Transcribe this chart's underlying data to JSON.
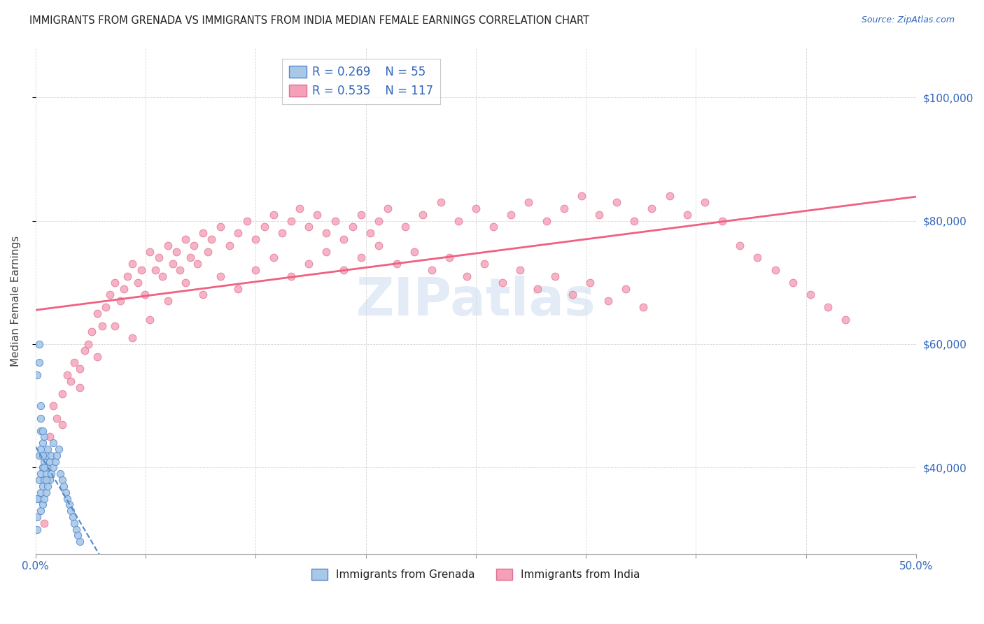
{
  "title": "IMMIGRANTS FROM GRENADA VS IMMIGRANTS FROM INDIA MEDIAN FEMALE EARNINGS CORRELATION CHART",
  "source": "Source: ZipAtlas.com",
  "ylabel": "Median Female Earnings",
  "ylabel_right_ticks": [
    40000,
    60000,
    80000,
    100000
  ],
  "ylabel_right_labels": [
    "$40,000",
    "$60,000",
    "$80,000",
    "$100,000"
  ],
  "grenada_R": 0.269,
  "grenada_N": 55,
  "india_R": 0.535,
  "india_N": 117,
  "grenada_color": "#a8c8e8",
  "india_color": "#f5a0b8",
  "grenada_line_color": "#5588cc",
  "india_line_color": "#f06080",
  "grenada_trend_style": "--",
  "india_trend_style": "-",
  "watermark": "ZIPatlas",
  "background_color": "#ffffff",
  "xlim": [
    0.0,
    0.5
  ],
  "ylim": [
    26000,
    108000
  ],
  "grenada_scatter_x": [
    0.001,
    0.002,
    0.002,
    0.002,
    0.003,
    0.003,
    0.003,
    0.003,
    0.003,
    0.004,
    0.004,
    0.004,
    0.004,
    0.005,
    0.005,
    0.005,
    0.005,
    0.006,
    0.006,
    0.006,
    0.007,
    0.007,
    0.007,
    0.008,
    0.008,
    0.009,
    0.009,
    0.01,
    0.01,
    0.011,
    0.012,
    0.013,
    0.014,
    0.015,
    0.016,
    0.017,
    0.018,
    0.019,
    0.02,
    0.021,
    0.022,
    0.023,
    0.024,
    0.025,
    0.001,
    0.001,
    0.001,
    0.002,
    0.002,
    0.003,
    0.003,
    0.004,
    0.004,
    0.005,
    0.006
  ],
  "grenada_scatter_y": [
    32000,
    35000,
    38000,
    42000,
    33000,
    36000,
    39000,
    43000,
    46000,
    34000,
    37000,
    40000,
    44000,
    35000,
    38000,
    41000,
    45000,
    36000,
    39000,
    42000,
    37000,
    40000,
    43000,
    38000,
    41000,
    39000,
    42000,
    40000,
    44000,
    41000,
    42000,
    43000,
    39000,
    38000,
    37000,
    36000,
    35000,
    34000,
    33000,
    32000,
    31000,
    30000,
    29000,
    28000,
    30000,
    35000,
    55000,
    57000,
    60000,
    50000,
    48000,
    46000,
    42000,
    40000,
    38000
  ],
  "india_scatter_x": [
    0.005,
    0.008,
    0.01,
    0.012,
    0.015,
    0.018,
    0.02,
    0.022,
    0.025,
    0.028,
    0.03,
    0.032,
    0.035,
    0.038,
    0.04,
    0.042,
    0.045,
    0.048,
    0.05,
    0.052,
    0.055,
    0.058,
    0.06,
    0.062,
    0.065,
    0.068,
    0.07,
    0.072,
    0.075,
    0.078,
    0.08,
    0.082,
    0.085,
    0.088,
    0.09,
    0.092,
    0.095,
    0.098,
    0.1,
    0.105,
    0.11,
    0.115,
    0.12,
    0.125,
    0.13,
    0.135,
    0.14,
    0.145,
    0.15,
    0.155,
    0.16,
    0.165,
    0.17,
    0.175,
    0.18,
    0.185,
    0.19,
    0.195,
    0.2,
    0.21,
    0.22,
    0.23,
    0.24,
    0.25,
    0.26,
    0.27,
    0.28,
    0.29,
    0.3,
    0.31,
    0.32,
    0.33,
    0.34,
    0.35,
    0.36,
    0.37,
    0.38,
    0.39,
    0.4,
    0.41,
    0.42,
    0.43,
    0.44,
    0.45,
    0.46,
    0.015,
    0.025,
    0.035,
    0.045,
    0.055,
    0.065,
    0.075,
    0.085,
    0.095,
    0.105,
    0.115,
    0.125,
    0.135,
    0.145,
    0.155,
    0.165,
    0.175,
    0.185,
    0.195,
    0.205,
    0.215,
    0.225,
    0.235,
    0.245,
    0.255,
    0.265,
    0.275,
    0.285,
    0.295,
    0.305,
    0.315,
    0.325,
    0.335,
    0.345
  ],
  "india_scatter_y": [
    31000,
    45000,
    50000,
    48000,
    52000,
    55000,
    54000,
    57000,
    56000,
    59000,
    60000,
    62000,
    65000,
    63000,
    66000,
    68000,
    70000,
    67000,
    69000,
    71000,
    73000,
    70000,
    72000,
    68000,
    75000,
    72000,
    74000,
    71000,
    76000,
    73000,
    75000,
    72000,
    77000,
    74000,
    76000,
    73000,
    78000,
    75000,
    77000,
    79000,
    76000,
    78000,
    80000,
    77000,
    79000,
    81000,
    78000,
    80000,
    82000,
    79000,
    81000,
    78000,
    80000,
    77000,
    79000,
    81000,
    78000,
    80000,
    82000,
    79000,
    81000,
    83000,
    80000,
    82000,
    79000,
    81000,
    83000,
    80000,
    82000,
    84000,
    81000,
    83000,
    80000,
    82000,
    84000,
    81000,
    83000,
    80000,
    76000,
    74000,
    72000,
    70000,
    68000,
    66000,
    64000,
    47000,
    53000,
    58000,
    63000,
    61000,
    64000,
    67000,
    70000,
    68000,
    71000,
    69000,
    72000,
    74000,
    71000,
    73000,
    75000,
    72000,
    74000,
    76000,
    73000,
    75000,
    72000,
    74000,
    71000,
    73000,
    70000,
    72000,
    69000,
    71000,
    68000,
    70000,
    67000,
    69000,
    66000
  ]
}
